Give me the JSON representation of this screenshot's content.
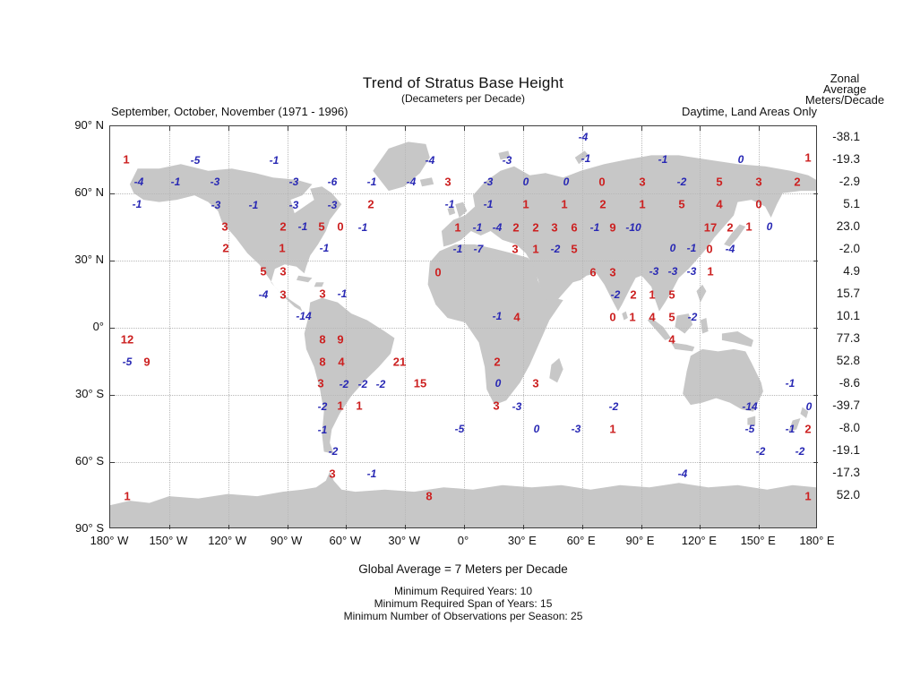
{
  "colors": {
    "positive_value": "#cc2020",
    "negative_value": "#2828b4",
    "land": "#c7c7c7",
    "grid": "#b8b8b8",
    "frame": "#3d3d3d"
  },
  "zonal": {
    "header": [
      "Zonal",
      "Average",
      "Meters/Decade"
    ],
    "values": [
      "-38.1",
      "-19.3",
      "-2.9",
      "5.1",
      "23.0",
      "-2.0",
      "4.9",
      "15.7",
      "10.1",
      "77.3",
      "52.8",
      "-8.6",
      "-39.7",
      "-8.0",
      "-19.1",
      "-17.3",
      "52.0"
    ]
  },
  "footer": {
    "global_average": "Global Average = 7 Meters per Decade",
    "notes": [
      "Minimum Required Years: 10",
      "Minimum Required Span of Years: 15",
      "Minimum Number of Observations per Season: 25"
    ]
  },
  "chart_data": {
    "type": "scatter",
    "title": "Trend of Stratus Base Height",
    "subtitle": "(Decameters per Decade)",
    "season_label": "September, October, November (1971 - 1996)",
    "filter_label": "Daytime, Land Areas Only",
    "x_axis": {
      "ticks": [
        "180° W",
        "150° W",
        "120° W",
        "90° W",
        "60° W",
        "30° W",
        "0°",
        "30° E",
        "60° E",
        "90° E",
        "120° E",
        "150° E",
        "180° E"
      ],
      "range_deg": [
        -180,
        180
      ],
      "grid": "dotted"
    },
    "y_axis": {
      "ticks": [
        "90° N",
        "60° N",
        "30° N",
        "0°",
        "30° S",
        "60° S",
        "90° S"
      ],
      "range_deg": [
        90,
        -90
      ],
      "grid": "dotted"
    },
    "legend": "red bold = positive trend value, blue italic = negative/zero trend value, black column = zonal average (Meters/Decade)",
    "point_format": [
      "page_x_px",
      "page_y_px",
      "value",
      "color_key r|b"
    ],
    "points": [
      [
        650,
        152,
        "-4",
        "b"
      ],
      [
        140,
        177,
        "1",
        "r"
      ],
      [
        217,
        178,
        "-5",
        "b"
      ],
      [
        305,
        178,
        "-1",
        "b"
      ],
      [
        479,
        178,
        "-4",
        "b"
      ],
      [
        565,
        178,
        "-3",
        "b"
      ],
      [
        653,
        176,
        "-1",
        "b"
      ],
      [
        739,
        177,
        "-1",
        "b"
      ],
      [
        826,
        177,
        "0",
        "b"
      ],
      [
        901,
        175,
        "1",
        "r"
      ],
      [
        154,
        202,
        "-4",
        "b"
      ],
      [
        195,
        202,
        "-1",
        "b"
      ],
      [
        239,
        202,
        "-3",
        "b"
      ],
      [
        327,
        202,
        "-3",
        "b"
      ],
      [
        370,
        202,
        "-6",
        "b"
      ],
      [
        414,
        202,
        "-1",
        "b"
      ],
      [
        458,
        202,
        "-4",
        "b"
      ],
      [
        499,
        202,
        "3",
        "r"
      ],
      [
        544,
        202,
        "-3",
        "b"
      ],
      [
        586,
        202,
        "0",
        "b"
      ],
      [
        631,
        202,
        "0",
        "b"
      ],
      [
        671,
        202,
        "0",
        "r"
      ],
      [
        716,
        202,
        "3",
        "r"
      ],
      [
        760,
        202,
        "-2",
        "b"
      ],
      [
        802,
        202,
        "5",
        "r"
      ],
      [
        846,
        202,
        "3",
        "r"
      ],
      [
        889,
        202,
        "2",
        "r"
      ],
      [
        152,
        227,
        "-1",
        "b"
      ],
      [
        240,
        228,
        "-3",
        "b"
      ],
      [
        282,
        228,
        "-1",
        "b"
      ],
      [
        327,
        228,
        "-3",
        "b"
      ],
      [
        370,
        228,
        "-3",
        "b"
      ],
      [
        413,
        227,
        "2",
        "r"
      ],
      [
        501,
        227,
        "-1",
        "b"
      ],
      [
        544,
        227,
        "-1",
        "b"
      ],
      [
        586,
        227,
        "1",
        "r"
      ],
      [
        629,
        227,
        "1",
        "r"
      ],
      [
        672,
        227,
        "2",
        "r"
      ],
      [
        716,
        227,
        "1",
        "r"
      ],
      [
        760,
        227,
        "5",
        "r"
      ],
      [
        802,
        227,
        "4",
        "r"
      ],
      [
        846,
        227,
        "0",
        "r"
      ],
      [
        250,
        252,
        "3",
        "r"
      ],
      [
        315,
        252,
        "2",
        "r"
      ],
      [
        337,
        252,
        "-1",
        "b"
      ],
      [
        358,
        252,
        "5",
        "r"
      ],
      [
        379,
        252,
        "0",
        "r"
      ],
      [
        404,
        253,
        "-1",
        "b"
      ],
      [
        510,
        253,
        "1",
        "r"
      ],
      [
        532,
        253,
        "-1",
        "b"
      ],
      [
        554,
        253,
        "-4",
        "b"
      ],
      [
        575,
        253,
        "2",
        "r"
      ],
      [
        597,
        253,
        "2",
        "r"
      ],
      [
        618,
        253,
        "3",
        "r"
      ],
      [
        640,
        253,
        "6",
        "r"
      ],
      [
        663,
        253,
        "-1",
        "b"
      ],
      [
        683,
        253,
        "9",
        "r"
      ],
      [
        706,
        253,
        "-10",
        "b"
      ],
      [
        792,
        253,
        "17",
        "r"
      ],
      [
        814,
        253,
        "2",
        "r"
      ],
      [
        835,
        252,
        "1",
        "r"
      ],
      [
        858,
        252,
        "0",
        "b"
      ],
      [
        251,
        276,
        "2",
        "r"
      ],
      [
        314,
        276,
        "1",
        "r"
      ],
      [
        361,
        276,
        "-1",
        "b"
      ],
      [
        510,
        277,
        "-1",
        "b"
      ],
      [
        533,
        277,
        "-7",
        "b"
      ],
      [
        574,
        277,
        "3",
        "r"
      ],
      [
        597,
        277,
        "1",
        "r"
      ],
      [
        619,
        277,
        "-2",
        "b"
      ],
      [
        640,
        277,
        "5",
        "r"
      ],
      [
        750,
        276,
        "0",
        "b"
      ],
      [
        771,
        276,
        "-1",
        "b"
      ],
      [
        791,
        277,
        "0",
        "r"
      ],
      [
        814,
        277,
        "-4",
        "b"
      ],
      [
        293,
        302,
        "5",
        "r"
      ],
      [
        315,
        302,
        "3",
        "r"
      ],
      [
        488,
        303,
        "0",
        "r"
      ],
      [
        661,
        303,
        "6",
        "r"
      ],
      [
        683,
        303,
        "3",
        "r"
      ],
      [
        729,
        302,
        "-3",
        "b"
      ],
      [
        750,
        302,
        "-3",
        "b"
      ],
      [
        771,
        302,
        "-3",
        "b"
      ],
      [
        792,
        302,
        "1",
        "r"
      ],
      [
        293,
        328,
        "-4",
        "b"
      ],
      [
        315,
        328,
        "3",
        "r"
      ],
      [
        359,
        327,
        "3",
        "r"
      ],
      [
        381,
        327,
        "-1",
        "b"
      ],
      [
        686,
        328,
        "-2",
        "b"
      ],
      [
        706,
        328,
        "2",
        "r"
      ],
      [
        727,
        328,
        "1",
        "r"
      ],
      [
        749,
        328,
        "5",
        "r"
      ],
      [
        338,
        352,
        "-14",
        "b"
      ],
      [
        554,
        352,
        "-1",
        "b"
      ],
      [
        576,
        353,
        "4",
        "r"
      ],
      [
        683,
        353,
        "0",
        "r"
      ],
      [
        705,
        353,
        "1",
        "r"
      ],
      [
        727,
        353,
        "4",
        "r"
      ],
      [
        749,
        353,
        "5",
        "r"
      ],
      [
        772,
        353,
        "-2",
        "b"
      ],
      [
        141,
        378,
        "12",
        "r"
      ],
      [
        359,
        378,
        "8",
        "r"
      ],
      [
        379,
        378,
        "9",
        "r"
      ],
      [
        749,
        378,
        "4",
        "r"
      ],
      [
        141,
        403,
        "-5",
        "b"
      ],
      [
        163,
        403,
        "9",
        "r"
      ],
      [
        359,
        403,
        "8",
        "r"
      ],
      [
        380,
        403,
        "4",
        "r"
      ],
      [
        445,
        403,
        "21",
        "r"
      ],
      [
        554,
        403,
        "2",
        "r"
      ],
      [
        357,
        427,
        "3",
        "r"
      ],
      [
        383,
        428,
        "-2",
        "b"
      ],
      [
        404,
        428,
        "-2",
        "b"
      ],
      [
        424,
        428,
        "-2",
        "b"
      ],
      [
        468,
        427,
        "15",
        "r"
      ],
      [
        555,
        427,
        "0",
        "b"
      ],
      [
        597,
        427,
        "3",
        "r"
      ],
      [
        881,
        427,
        "-1",
        "b"
      ],
      [
        359,
        453,
        "-2",
        "b"
      ],
      [
        379,
        452,
        "1",
        "r"
      ],
      [
        400,
        452,
        "1",
        "r"
      ],
      [
        553,
        452,
        "3",
        "r"
      ],
      [
        576,
        453,
        "-3",
        "b"
      ],
      [
        684,
        453,
        "-2",
        "b"
      ],
      [
        836,
        453,
        "-14",
        "b"
      ],
      [
        902,
        453,
        "0",
        "b"
      ],
      [
        359,
        479,
        "-1",
        "b"
      ],
      [
        512,
        478,
        "-5",
        "b"
      ],
      [
        598,
        478,
        "0",
        "b"
      ],
      [
        642,
        478,
        "-3",
        "b"
      ],
      [
        683,
        478,
        "1",
        "r"
      ],
      [
        836,
        478,
        "-5",
        "b"
      ],
      [
        881,
        478,
        "-1",
        "b"
      ],
      [
        901,
        478,
        "2",
        "r"
      ],
      [
        371,
        503,
        "-2",
        "b"
      ],
      [
        848,
        503,
        "-2",
        "b"
      ],
      [
        892,
        503,
        "-2",
        "b"
      ],
      [
        370,
        528,
        "3",
        "r"
      ],
      [
        414,
        528,
        "-1",
        "b"
      ],
      [
        761,
        528,
        "-4",
        "b"
      ],
      [
        141,
        553,
        "1",
        "r"
      ],
      [
        478,
        553,
        "8",
        "r"
      ],
      [
        901,
        553,
        "1",
        "r"
      ]
    ]
  }
}
